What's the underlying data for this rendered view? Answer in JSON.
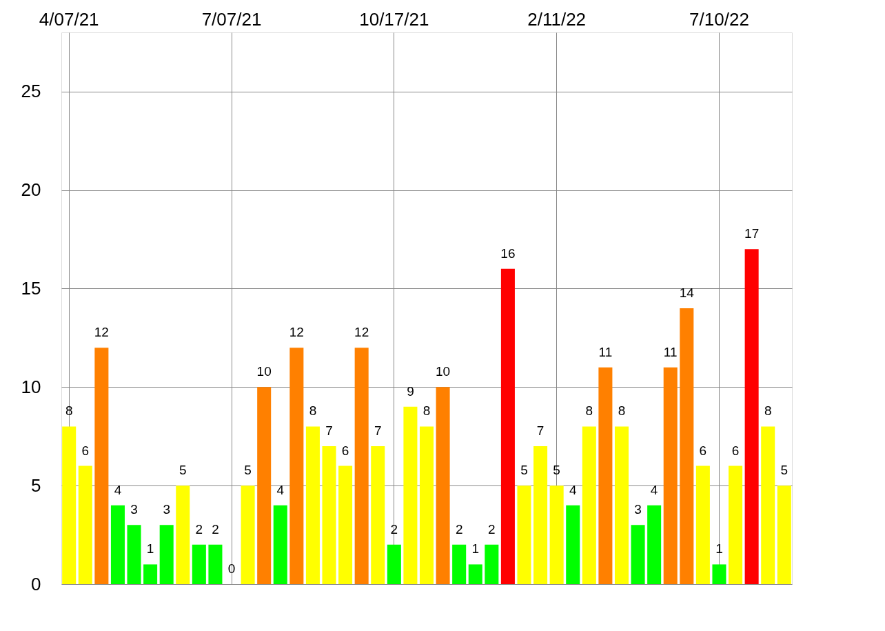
{
  "chart_data": {
    "type": "bar",
    "categories": [
      "4/07/21",
      null,
      null,
      null,
      null,
      null,
      null,
      null,
      null,
      null,
      "7/07/21",
      null,
      null,
      null,
      null,
      null,
      null,
      null,
      null,
      null,
      "10/17/21",
      null,
      null,
      null,
      null,
      null,
      null,
      null,
      null,
      null,
      "2/11/22",
      null,
      null,
      null,
      null,
      null,
      null,
      null,
      null,
      null,
      "7/10/22",
      null,
      null,
      null,
      null
    ],
    "values": [
      8,
      6,
      12,
      4,
      3,
      1,
      3,
      5,
      2,
      2,
      0,
      5,
      10,
      4,
      12,
      8,
      7,
      6,
      12,
      7,
      2,
      9,
      8,
      10,
      2,
      1,
      2,
      16,
      5,
      7,
      5,
      4,
      8,
      11,
      8,
      3,
      4,
      11,
      14,
      6,
      1,
      6,
      17,
      8,
      5
    ],
    "colors": [
      "#ffff00",
      "#ffff00",
      "#ff8000",
      "#00ff00",
      "#00ff00",
      "#00ff00",
      "#00ff00",
      "#ffff00",
      "#00ff00",
      "#00ff00",
      "#00ff00",
      "#ffff00",
      "#ff8000",
      "#00ff00",
      "#ff8000",
      "#ffff00",
      "#ffff00",
      "#ffff00",
      "#ff8000",
      "#ffff00",
      "#00ff00",
      "#ffff00",
      "#ffff00",
      "#ff8000",
      "#00ff00",
      "#00ff00",
      "#00ff00",
      "#ff0000",
      "#ffff00",
      "#ffff00",
      "#ffff00",
      "#00ff00",
      "#ffff00",
      "#ff8000",
      "#ffff00",
      "#00ff00",
      "#00ff00",
      "#ff8000",
      "#ff8000",
      "#ffff00",
      "#00ff00",
      "#ffff00",
      "#ff0000",
      "#ffff00",
      "#ffff00"
    ],
    "ylim": [
      0,
      28
    ],
    "yticks": [
      0,
      5,
      10,
      15,
      20,
      25
    ],
    "grid": true,
    "data_labels": true
  }
}
